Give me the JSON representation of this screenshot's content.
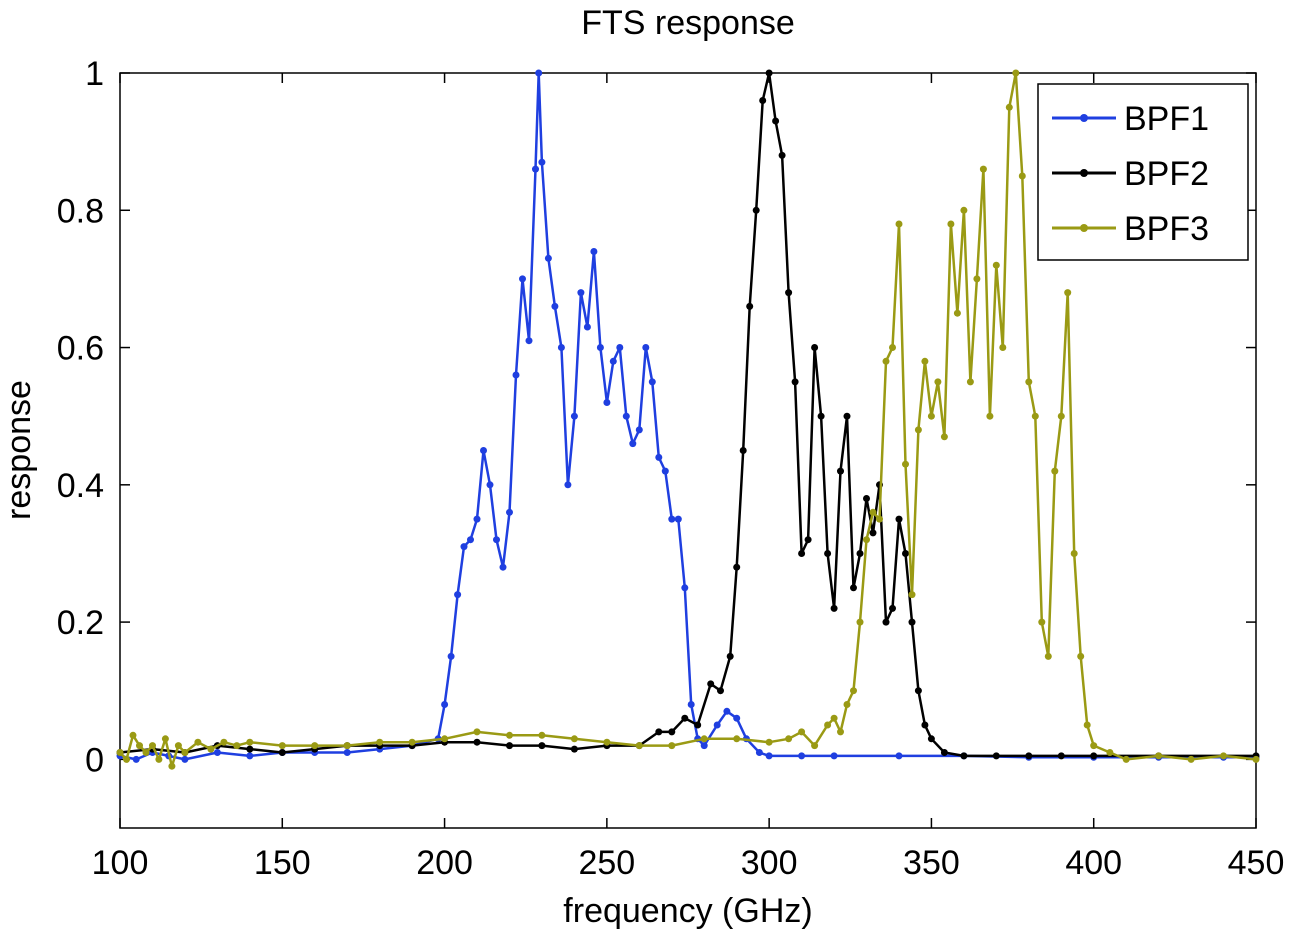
{
  "chart_data": {
    "type": "line",
    "title": "FTS response",
    "xlabel": "frequency  (GHz)",
    "ylabel": "response",
    "xlim": [
      100,
      450
    ],
    "ylim": [
      -0.1,
      1.0
    ],
    "xticks": [
      100,
      150,
      200,
      250,
      300,
      350,
      400,
      450
    ],
    "xtick_labels": [
      "100",
      "150",
      "200",
      "250",
      "300",
      "350",
      "400",
      "450"
    ],
    "yticks": [
      0,
      0.2,
      0.4,
      0.6,
      0.8,
      1.0
    ],
    "ytick_labels": [
      "0",
      "0.2",
      "0.4",
      "0.6",
      "0.8",
      "1"
    ],
    "grid": false,
    "legend_position": "top-right",
    "series": [
      {
        "name": "BPF1",
        "color": "#1f3fe0",
        "points": [
          [
            100,
            0.005
          ],
          [
            105,
            0.0
          ],
          [
            110,
            0.01
          ],
          [
            115,
            0.005
          ],
          [
            120,
            0.0
          ],
          [
            130,
            0.01
          ],
          [
            140,
            0.005
          ],
          [
            150,
            0.01
          ],
          [
            160,
            0.01
          ],
          [
            170,
            0.01
          ],
          [
            180,
            0.015
          ],
          [
            190,
            0.02
          ],
          [
            198,
            0.03
          ],
          [
            200,
            0.08
          ],
          [
            202,
            0.15
          ],
          [
            204,
            0.24
          ],
          [
            206,
            0.31
          ],
          [
            208,
            0.32
          ],
          [
            210,
            0.35
          ],
          [
            212,
            0.45
          ],
          [
            214,
            0.4
          ],
          [
            216,
            0.32
          ],
          [
            218,
            0.28
          ],
          [
            220,
            0.36
          ],
          [
            222,
            0.56
          ],
          [
            224,
            0.7
          ],
          [
            226,
            0.61
          ],
          [
            228,
            0.86
          ],
          [
            229,
            1.0
          ],
          [
            230,
            0.87
          ],
          [
            232,
            0.73
          ],
          [
            234,
            0.66
          ],
          [
            236,
            0.6
          ],
          [
            238,
            0.4
          ],
          [
            240,
            0.5
          ],
          [
            242,
            0.68
          ],
          [
            244,
            0.63
          ],
          [
            246,
            0.74
          ],
          [
            248,
            0.6
          ],
          [
            250,
            0.52
          ],
          [
            252,
            0.58
          ],
          [
            254,
            0.6
          ],
          [
            256,
            0.5
          ],
          [
            258,
            0.46
          ],
          [
            260,
            0.48
          ],
          [
            262,
            0.6
          ],
          [
            264,
            0.55
          ],
          [
            266,
            0.44
          ],
          [
            268,
            0.42
          ],
          [
            270,
            0.35
          ],
          [
            272,
            0.35
          ],
          [
            274,
            0.25
          ],
          [
            276,
            0.08
          ],
          [
            278,
            0.03
          ],
          [
            280,
            0.02
          ],
          [
            284,
            0.05
          ],
          [
            287,
            0.07
          ],
          [
            290,
            0.06
          ],
          [
            293,
            0.03
          ],
          [
            297,
            0.01
          ],
          [
            300,
            0.005
          ],
          [
            310,
            0.005
          ],
          [
            320,
            0.005
          ],
          [
            340,
            0.005
          ],
          [
            360,
            0.005
          ],
          [
            380,
            0.003
          ],
          [
            400,
            0.003
          ],
          [
            420,
            0.003
          ],
          [
            440,
            0.003
          ],
          [
            450,
            0.003
          ]
        ]
      },
      {
        "name": "BPF2",
        "color": "#000000",
        "points": [
          [
            100,
            0.01
          ],
          [
            110,
            0.015
          ],
          [
            120,
            0.01
          ],
          [
            130,
            0.02
          ],
          [
            140,
            0.015
          ],
          [
            150,
            0.01
          ],
          [
            160,
            0.015
          ],
          [
            170,
            0.02
          ],
          [
            180,
            0.02
          ],
          [
            190,
            0.02
          ],
          [
            200,
            0.025
          ],
          [
            210,
            0.025
          ],
          [
            220,
            0.02
          ],
          [
            230,
            0.02
          ],
          [
            240,
            0.015
          ],
          [
            250,
            0.02
          ],
          [
            260,
            0.02
          ],
          [
            266,
            0.04
          ],
          [
            270,
            0.04
          ],
          [
            274,
            0.06
          ],
          [
            278,
            0.05
          ],
          [
            282,
            0.11
          ],
          [
            285,
            0.1
          ],
          [
            288,
            0.15
          ],
          [
            290,
            0.28
          ],
          [
            292,
            0.45
          ],
          [
            294,
            0.66
          ],
          [
            296,
            0.8
          ],
          [
            298,
            0.96
          ],
          [
            300,
            1.0
          ],
          [
            302,
            0.93
          ],
          [
            304,
            0.88
          ],
          [
            306,
            0.68
          ],
          [
            308,
            0.55
          ],
          [
            310,
            0.3
          ],
          [
            312,
            0.32
          ],
          [
            314,
            0.6
          ],
          [
            316,
            0.5
          ],
          [
            318,
            0.3
          ],
          [
            320,
            0.22
          ],
          [
            322,
            0.42
          ],
          [
            324,
            0.5
          ],
          [
            326,
            0.25
          ],
          [
            328,
            0.3
          ],
          [
            330,
            0.38
          ],
          [
            332,
            0.33
          ],
          [
            334,
            0.4
          ],
          [
            336,
            0.2
          ],
          [
            338,
            0.22
          ],
          [
            340,
            0.35
          ],
          [
            342,
            0.3
          ],
          [
            344,
            0.2
          ],
          [
            346,
            0.1
          ],
          [
            348,
            0.05
          ],
          [
            350,
            0.03
          ],
          [
            354,
            0.01
          ],
          [
            360,
            0.005
          ],
          [
            370,
            0.005
          ],
          [
            380,
            0.005
          ],
          [
            390,
            0.005
          ],
          [
            400,
            0.005
          ],
          [
            420,
            0.005
          ],
          [
            450,
            0.005
          ]
        ]
      },
      {
        "name": "BPF3",
        "color": "#9a9a14",
        "points": [
          [
            100,
            0.01
          ],
          [
            102,
            0.0
          ],
          [
            104,
            0.035
          ],
          [
            106,
            0.02
          ],
          [
            108,
            0.01
          ],
          [
            110,
            0.02
          ],
          [
            112,
            0.0
          ],
          [
            114,
            0.03
          ],
          [
            116,
            -0.01
          ],
          [
            118,
            0.02
          ],
          [
            120,
            0.01
          ],
          [
            124,
            0.025
          ],
          [
            128,
            0.015
          ],
          [
            132,
            0.025
          ],
          [
            136,
            0.02
          ],
          [
            140,
            0.025
          ],
          [
            150,
            0.02
          ],
          [
            160,
            0.02
          ],
          [
            170,
            0.02
          ],
          [
            180,
            0.025
          ],
          [
            190,
            0.025
          ],
          [
            200,
            0.03
          ],
          [
            210,
            0.04
          ],
          [
            220,
            0.035
          ],
          [
            230,
            0.035
          ],
          [
            240,
            0.03
          ],
          [
            250,
            0.025
          ],
          [
            260,
            0.02
          ],
          [
            270,
            0.02
          ],
          [
            280,
            0.03
          ],
          [
            290,
            0.03
          ],
          [
            300,
            0.025
          ],
          [
            306,
            0.03
          ],
          [
            310,
            0.04
          ],
          [
            314,
            0.02
          ],
          [
            318,
            0.05
          ],
          [
            320,
            0.06
          ],
          [
            322,
            0.04
          ],
          [
            324,
            0.08
          ],
          [
            326,
            0.1
          ],
          [
            328,
            0.2
          ],
          [
            330,
            0.32
          ],
          [
            332,
            0.36
          ],
          [
            334,
            0.35
          ],
          [
            336,
            0.58
          ],
          [
            338,
            0.6
          ],
          [
            340,
            0.78
          ],
          [
            342,
            0.43
          ],
          [
            344,
            0.24
          ],
          [
            346,
            0.48
          ],
          [
            348,
            0.58
          ],
          [
            350,
            0.5
          ],
          [
            352,
            0.55
          ],
          [
            354,
            0.47
          ],
          [
            356,
            0.78
          ],
          [
            358,
            0.65
          ],
          [
            360,
            0.8
          ],
          [
            362,
            0.55
          ],
          [
            364,
            0.7
          ],
          [
            366,
            0.86
          ],
          [
            368,
            0.5
          ],
          [
            370,
            0.72
          ],
          [
            372,
            0.6
          ],
          [
            374,
            0.95
          ],
          [
            376,
            1.0
          ],
          [
            378,
            0.85
          ],
          [
            380,
            0.55
          ],
          [
            382,
            0.5
          ],
          [
            384,
            0.2
          ],
          [
            386,
            0.15
          ],
          [
            388,
            0.42
          ],
          [
            390,
            0.5
          ],
          [
            392,
            0.68
          ],
          [
            394,
            0.3
          ],
          [
            396,
            0.15
          ],
          [
            398,
            0.05
          ],
          [
            400,
            0.02
          ],
          [
            405,
            0.01
          ],
          [
            410,
            0.0
          ],
          [
            420,
            0.005
          ],
          [
            430,
            0.0
          ],
          [
            440,
            0.005
          ],
          [
            450,
            0.0
          ]
        ]
      }
    ]
  }
}
